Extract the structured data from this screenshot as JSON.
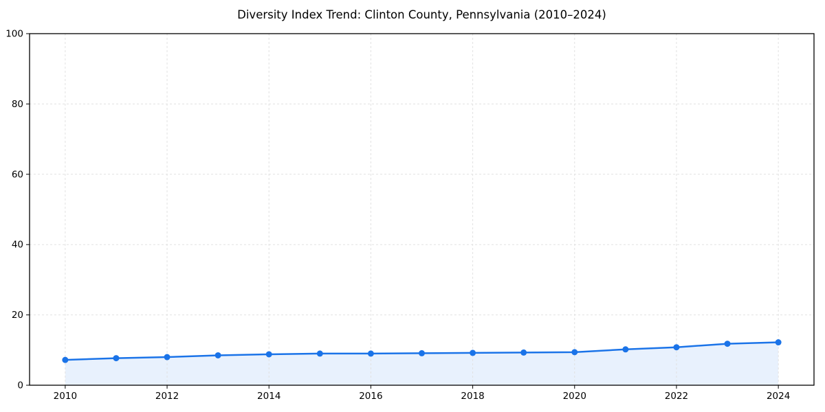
{
  "chart_data": {
    "type": "area",
    "title": "Diversity Index Trend: Clinton County, Pennsylvania (2010–2024)",
    "x": [
      2010,
      2011,
      2012,
      2013,
      2014,
      2015,
      2016,
      2017,
      2018,
      2019,
      2020,
      2021,
      2022,
      2023,
      2024
    ],
    "series": [
      {
        "name": "Diversity Index",
        "values": [
          7.2,
          7.7,
          8.0,
          8.5,
          8.8,
          9.0,
          9.0,
          9.1,
          9.2,
          9.3,
          9.4,
          10.2,
          10.8,
          11.8,
          12.2
        ]
      }
    ],
    "xlabel": "",
    "ylabel": "",
    "xlim": [
      2009.3,
      2024.7
    ],
    "ylim": [
      0,
      100
    ],
    "xticks": [
      2010,
      2012,
      2014,
      2016,
      2018,
      2020,
      2022,
      2024
    ],
    "yticks": [
      0,
      20,
      40,
      60,
      80,
      100
    ],
    "grid": true,
    "grid_style": "dashed",
    "legend": false,
    "colors": {
      "line": "#1a73e8",
      "marker": "#1a73e8",
      "fill": "rgba(26,115,232,0.10)",
      "grid": "#e1e1e1",
      "spine": "#000000",
      "tick_text": "#000000",
      "background": "#ffffff"
    }
  }
}
